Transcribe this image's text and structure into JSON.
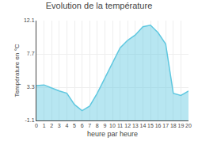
{
  "chart_data": {
    "type": "area",
    "title": "Evolution de la température",
    "xlabel": "heure par heure",
    "ylabel": "Température en °C",
    "x": [
      0,
      1,
      2,
      3,
      4,
      5,
      6,
      7,
      8,
      9,
      10,
      11,
      12,
      13,
      14,
      15,
      16,
      17,
      18,
      19,
      20
    ],
    "values": [
      3.5,
      3.6,
      3.2,
      2.8,
      2.5,
      1.0,
      0.2,
      0.8,
      2.5,
      4.5,
      6.5,
      8.5,
      9.5,
      10.2,
      11.3,
      11.5,
      10.5,
      9.0,
      2.5,
      2.2,
      2.8
    ],
    "xlim": [
      0,
      20
    ],
    "xticks": [
      0,
      1,
      2,
      3,
      4,
      5,
      6,
      7,
      8,
      9,
      10,
      11,
      12,
      13,
      14,
      15,
      16,
      17,
      18,
      19,
      20
    ],
    "ylim": [
      -1.1,
      12.1
    ],
    "yticks": [
      -1.1,
      3.3,
      7.7,
      12.1
    ],
    "grid": true,
    "color": "#60c8e0"
  }
}
